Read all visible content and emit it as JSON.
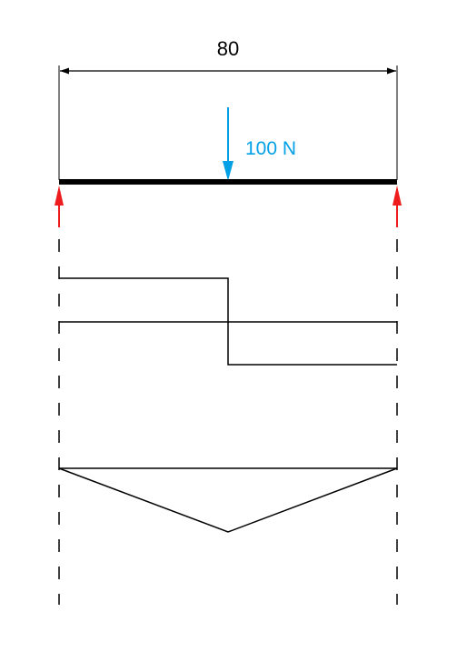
{
  "dimension": {
    "label": "80"
  },
  "load": {
    "label": "100 N",
    "color": "#00a0e6"
  },
  "reaction_color": "#ee1c1c",
  "beam_color": "#000000"
}
